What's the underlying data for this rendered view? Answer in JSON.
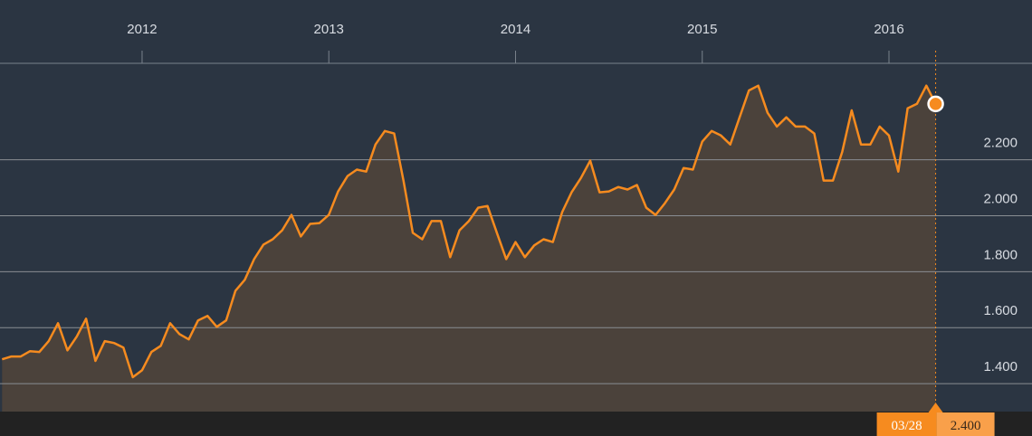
{
  "chart_data": {
    "type": "area",
    "x": [
      2011.25,
      2011.3,
      2011.35,
      2011.4,
      2011.45,
      2011.5,
      2011.55,
      2011.6,
      2011.65,
      2011.7,
      2011.75,
      2011.8,
      2011.85,
      2011.9,
      2011.95,
      2012,
      2012.05,
      2012.1,
      2012.15,
      2012.2,
      2012.25,
      2012.3,
      2012.35,
      2012.4,
      2012.45,
      2012.5,
      2012.55,
      2012.6,
      2012.65,
      2012.7,
      2012.75,
      2012.8,
      2012.85,
      2012.9,
      2012.95,
      2013,
      2013.05,
      2013.1,
      2013.15,
      2013.2,
      2013.25,
      2013.3,
      2013.35,
      2013.4,
      2013.45,
      2013.5,
      2013.55,
      2013.6,
      2013.65,
      2013.7,
      2013.75,
      2013.8,
      2013.85,
      2013.9,
      2013.95,
      2014,
      2014.05,
      2014.1,
      2014.15,
      2014.2,
      2014.25,
      2014.3,
      2014.35,
      2014.4,
      2014.45,
      2014.5,
      2014.55,
      2014.6,
      2014.65,
      2014.7,
      2014.75,
      2014.8,
      2014.85,
      2014.9,
      2014.95,
      2015,
      2015.05,
      2015.1,
      2015.15,
      2015.2,
      2015.25,
      2015.3,
      2015.35,
      2015.4,
      2015.45,
      2015.5,
      2015.55,
      2015.6,
      2015.65,
      2015.7,
      2015.75,
      2015.8,
      2015.85,
      2015.9,
      2015.95,
      2016,
      2016.05,
      2016.1,
      2016.15,
      2016.2,
      2016.25
    ],
    "values": [
      1.487,
      1.497,
      1.497,
      1.516,
      1.513,
      1.552,
      1.616,
      1.519,
      1.568,
      1.632,
      1.481,
      1.552,
      1.545,
      1.529,
      1.423,
      1.448,
      1.513,
      1.535,
      1.616,
      1.577,
      1.558,
      1.626,
      1.642,
      1.603,
      1.626,
      1.732,
      1.771,
      1.845,
      1.897,
      1.916,
      1.948,
      2.003,
      1.926,
      1.971,
      1.974,
      2.003,
      2.087,
      2.142,
      2.165,
      2.158,
      2.255,
      2.303,
      2.294,
      2.126,
      1.939,
      1.916,
      1.981,
      1.981,
      1.852,
      1.948,
      1.981,
      2.029,
      2.035,
      1.939,
      1.845,
      1.906,
      1.852,
      1.894,
      1.916,
      1.906,
      2.013,
      2.084,
      2.135,
      2.197,
      2.084,
      2.087,
      2.103,
      2.094,
      2.11,
      2.029,
      2.003,
      2.045,
      2.094,
      2.171,
      2.165,
      2.265,
      2.303,
      2.287,
      2.255,
      2.352,
      2.448,
      2.465,
      2.368,
      2.319,
      2.352,
      2.319,
      2.319,
      2.294,
      2.126,
      2.126,
      2.229,
      2.377,
      2.255,
      2.255,
      2.319,
      2.287,
      2.158,
      2.384,
      2.4,
      2.465,
      2.4
    ],
    "color": "#f68b1f",
    "xlim": [
      2011.239,
      2016.766
    ],
    "xticks": [
      2012,
      2013,
      2014,
      2015,
      2016
    ],
    "ylim": [
      1.3,
      2.545
    ],
    "yticks": [
      {
        "value": 1.4,
        "label": "1.400"
      },
      {
        "value": 1.6,
        "label": "1.600"
      },
      {
        "value": 1.8,
        "label": "1.800"
      },
      {
        "value": 2.0,
        "label": "2.000"
      },
      {
        "value": 2.2,
        "label": "2.200"
      }
    ],
    "grid": true,
    "annotation": {
      "x_label": "03/28",
      "value": 2.4,
      "value_label": "2.400"
    }
  }
}
